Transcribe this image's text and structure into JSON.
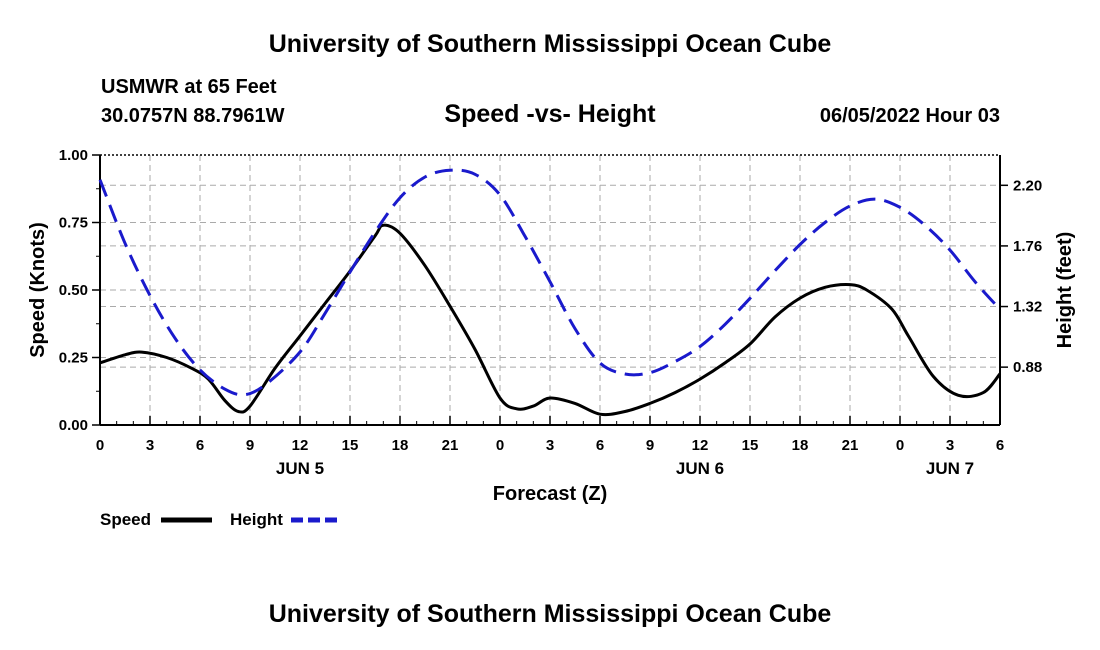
{
  "page": {
    "top_title": "University of Southern Mississippi Ocean Cube",
    "bottom_title": "University of Southern Mississippi Ocean Cube",
    "station": "USMWR at 65 Feet",
    "coords": "30.0757N  88.7961W",
    "datetime": "06/05/2022 Hour 03"
  },
  "colors": {
    "speed": "#000000",
    "height": "#1a1acc",
    "grid": "#aaaaaa"
  },
  "chart_data": {
    "type": "line",
    "title": "Speed -vs- Height",
    "xlabel": "Forecast (Z)",
    "ylabel": "Speed (Knots)",
    "y2label": "Height (feet)",
    "x_range": [
      0,
      54
    ],
    "x_ticks": [
      0,
      3,
      6,
      9,
      12,
      15,
      18,
      21,
      24,
      27,
      30,
      33,
      36,
      39,
      42,
      45,
      48,
      51,
      54
    ],
    "x_tick_labels": [
      "0",
      "3",
      "6",
      "9",
      "12",
      "15",
      "18",
      "21",
      "0",
      "3",
      "6",
      "9",
      "12",
      "15",
      "18",
      "21",
      "0",
      "3",
      "6"
    ],
    "day_labels": [
      {
        "x": 12,
        "label": "JUN 5"
      },
      {
        "x": 36,
        "label": "JUN 6"
      },
      {
        "x": 51,
        "label": "JUN 7"
      }
    ],
    "ylim": [
      0,
      1
    ],
    "y_ticks": [
      0,
      0.25,
      0.5,
      0.75,
      1.0
    ],
    "y_tick_labels": [
      "0.00",
      "0.25",
      "0.50",
      "0.75",
      "1.00"
    ],
    "y2lim": [
      0.46,
      2.42
    ],
    "y2_ticks": [
      0.88,
      1.32,
      1.76,
      2.2
    ],
    "y2_tick_labels": [
      "0.88",
      "1.32",
      "1.76",
      "2.20"
    ],
    "grid": true,
    "legend_position": "bottom-left",
    "series": [
      {
        "name": "Speed",
        "axis": "left",
        "x": [
          0,
          1.5,
          2.5,
          4,
          5.5,
          6.5,
          7.5,
          8.3,
          9,
          10.5,
          12,
          13.5,
          15,
          16.5,
          17,
          18,
          19.5,
          21,
          22.5,
          24,
          25,
          26,
          27,
          28.5,
          30,
          31.5,
          33,
          34.5,
          36,
          37.5,
          39,
          40.5,
          42,
          43.5,
          45,
          46,
          47.5,
          48.5,
          50,
          51.5,
          53,
          54
        ],
        "values": [
          0.23,
          0.26,
          0.27,
          0.25,
          0.21,
          0.17,
          0.09,
          0.05,
          0.07,
          0.21,
          0.33,
          0.45,
          0.57,
          0.7,
          0.74,
          0.71,
          0.59,
          0.44,
          0.28,
          0.1,
          0.06,
          0.07,
          0.1,
          0.08,
          0.04,
          0.05,
          0.08,
          0.12,
          0.17,
          0.23,
          0.3,
          0.4,
          0.47,
          0.51,
          0.52,
          0.5,
          0.43,
          0.33,
          0.18,
          0.11,
          0.12,
          0.19
        ]
      },
      {
        "name": "Height",
        "axis": "right",
        "x": [
          0,
          1.5,
          3,
          4.5,
          6,
          7.5,
          8.7,
          10,
          12,
          13.5,
          15,
          16.5,
          18,
          19.5,
          21,
          22.5,
          24,
          25.5,
          27,
          28.5,
          30,
          31.5,
          33,
          34.5,
          36,
          37.5,
          39,
          40.5,
          42,
          43.5,
          45,
          46.5,
          48,
          49.5,
          51,
          52.5,
          54
        ],
        "values": [
          2.24,
          1.78,
          1.4,
          1.09,
          0.86,
          0.72,
          0.68,
          0.76,
          0.99,
          1.27,
          1.57,
          1.86,
          2.11,
          2.26,
          2.31,
          2.28,
          2.13,
          1.83,
          1.5,
          1.16,
          0.91,
          0.83,
          0.84,
          0.92,
          1.03,
          1.19,
          1.38,
          1.58,
          1.77,
          1.93,
          2.05,
          2.1,
          2.04,
          1.91,
          1.73,
          1.5,
          1.3
        ]
      }
    ]
  }
}
